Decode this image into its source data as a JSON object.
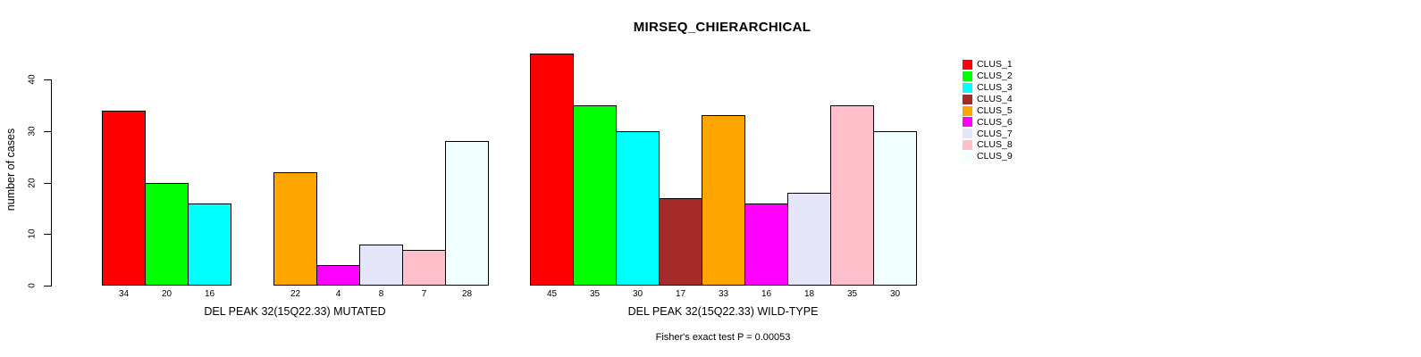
{
  "title": "MIRSEQ_CHIERARCHICAL",
  "footer": "Fisher's exact test P = 0.00053",
  "y_axis": {
    "label": "number of cases",
    "ticks": [
      0,
      10,
      20,
      30,
      40
    ]
  },
  "palette": {
    "CLUS_1": "#FF0000",
    "CLUS_2": "#00FF00",
    "CLUS_3": "#00FFFF",
    "CLUS_4": "#A52A2A",
    "CLUS_5": "#FFA500",
    "CLUS_6": "#FF00FF",
    "CLUS_7": "#E6E6FA",
    "CLUS_8": "#FFC0CB",
    "CLUS_9": "#F0FFFF"
  },
  "legend": {
    "position": "right",
    "entries": [
      {
        "label": "CLUS_1",
        "color": "#FF0000"
      },
      {
        "label": "CLUS_2",
        "color": "#00FF00"
      },
      {
        "label": "CLUS_3",
        "color": "#00FFFF"
      },
      {
        "label": "CLUS_4",
        "color": "#A52A2A"
      },
      {
        "label": "CLUS_5",
        "color": "#FFA500"
      },
      {
        "label": "CLUS_6",
        "color": "#FF00FF"
      },
      {
        "label": "CLUS_7",
        "color": "#E6E6FA"
      },
      {
        "label": "CLUS_8",
        "color": "#FFC0CB"
      },
      {
        "label": "CLUS_9",
        "color": "#F0FFFF"
      }
    ]
  },
  "chart_data": [
    {
      "type": "bar",
      "group": "MUTATED",
      "xlabel": "DEL PEAK 32(15Q22.33) MUTATED",
      "ylabel": "number of cases",
      "categories": [
        "CLUS_1",
        "CLUS_2",
        "CLUS_3",
        "CLUS_4",
        "CLUS_5",
        "CLUS_6",
        "CLUS_7",
        "CLUS_8",
        "CLUS_9"
      ],
      "values": [
        34,
        20,
        16,
        0,
        22,
        4,
        8,
        7,
        28
      ],
      "bar_labels": [
        "34",
        "20",
        "16",
        "",
        "22",
        "4",
        "8",
        "7",
        "28"
      ],
      "colors": [
        "#FF0000",
        "#00FF00",
        "#00FFFF",
        "#A52A2A",
        "#FFA500",
        "#FF00FF",
        "#E6E6FA",
        "#FFC0CB",
        "#F0FFFF"
      ],
      "ylim": [
        0,
        45
      ],
      "grid": false
    },
    {
      "type": "bar",
      "group": "WILD-TYPE",
      "xlabel": "DEL PEAK 32(15Q22.33) WILD-TYPE",
      "ylabel": "number of cases",
      "categories": [
        "CLUS_1",
        "CLUS_2",
        "CLUS_3",
        "CLUS_4",
        "CLUS_5",
        "CLUS_6",
        "CLUS_7",
        "CLUS_8",
        "CLUS_9"
      ],
      "values": [
        45,
        35,
        30,
        17,
        33,
        16,
        18,
        35,
        30
      ],
      "bar_labels": [
        "45",
        "35",
        "30",
        "17",
        "33",
        "16",
        "18",
        "35",
        "30"
      ],
      "colors": [
        "#FF0000",
        "#00FF00",
        "#00FFFF",
        "#A52A2A",
        "#FFA500",
        "#FF00FF",
        "#E6E6FA",
        "#FFC0CB",
        "#F0FFFF"
      ],
      "ylim": [
        0,
        45
      ],
      "grid": false
    }
  ]
}
